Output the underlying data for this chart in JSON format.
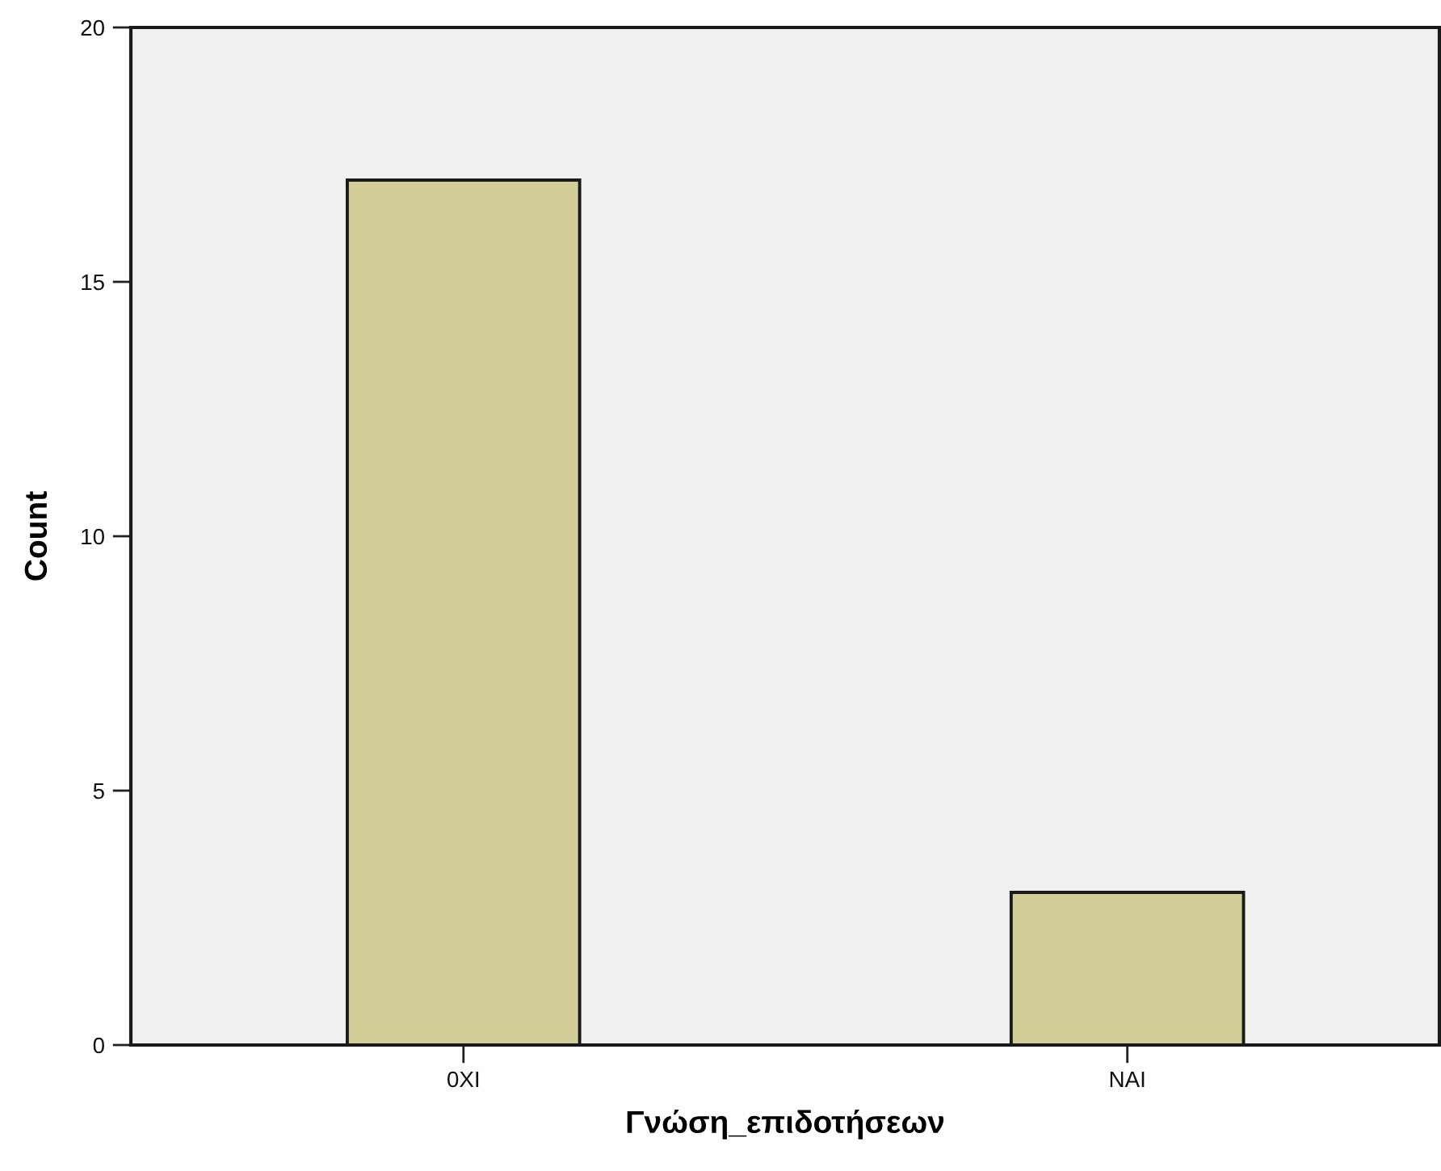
{
  "chart_data": {
    "type": "bar",
    "categories": [
      "0XI",
      "NAI"
    ],
    "values": [
      17,
      3
    ],
    "color": "#d3ce97",
    "xlabel": "Γνώση_επιδοτήσεων",
    "ylabel": "Count",
    "ylim": [
      0,
      20
    ],
    "yticks": [
      0,
      5,
      10,
      15,
      20
    ]
  }
}
